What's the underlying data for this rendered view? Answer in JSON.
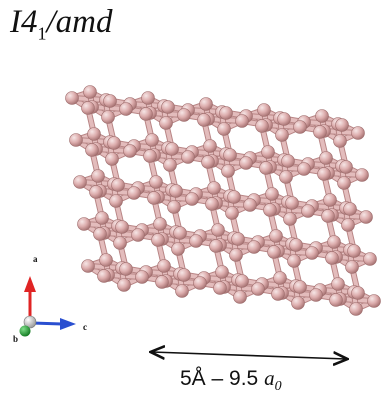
{
  "title": {
    "main": "I4",
    "subscript": "1",
    "rest": "/amd"
  },
  "axes": {
    "a_label": "a",
    "b_label": "b",
    "c_label": "c",
    "colors": {
      "a": "#e02424",
      "b": "#1f9a2e",
      "c": "#2a4fd0",
      "origin": "#c8c8c8"
    }
  },
  "scale": {
    "text": "5Å – 9.5 ",
    "unit_main": "a",
    "unit_sub": "0"
  },
  "colors": {
    "atom": "#d9a6a6",
    "atom_highlight": "#f3dede",
    "bond": "#e3bcbc",
    "bond_edge": "#b88585"
  }
}
